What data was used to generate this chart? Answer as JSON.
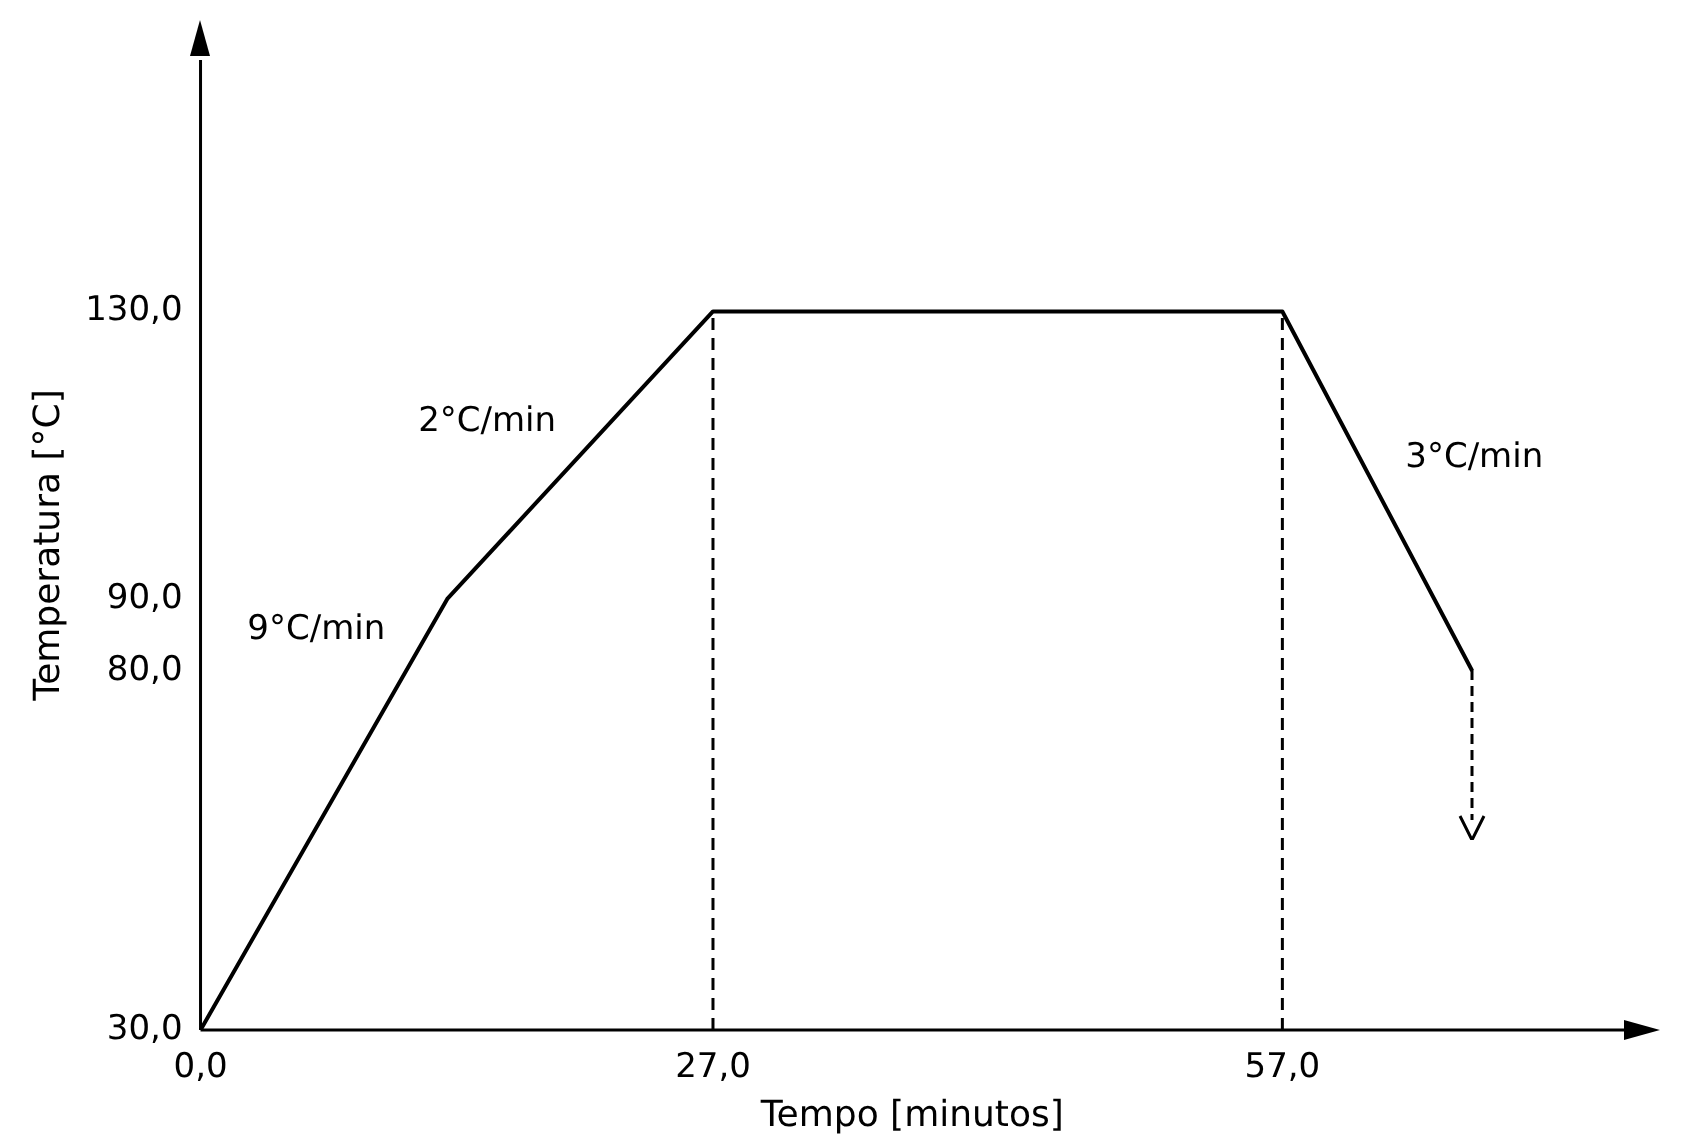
{
  "chart_data": {
    "type": "line",
    "xlabel": "Tempo [minutos]",
    "ylabel": "Temperatura [°C]",
    "x": [
      0,
      13,
      27,
      57,
      67
    ],
    "series": [
      {
        "color": "#000000",
        "values": [
          30,
          90,
          130,
          130,
          80
        ]
      }
    ],
    "xlim": [
      0,
      75
    ],
    "ylim": [
      30,
      165
    ],
    "xticks": [
      {
        "value": 0,
        "label": "0,0"
      },
      {
        "value": 27,
        "label": "27,0"
      },
      {
        "value": 57,
        "label": "57,0"
      }
    ],
    "yticks": [
      {
        "value": 30,
        "label": "30,0"
      },
      {
        "value": 80,
        "label": "80,0"
      },
      {
        "value": 90,
        "label": "90,0"
      },
      {
        "value": 130,
        "label": "130,0"
      }
    ],
    "ref_lines": [
      {
        "axis": "x",
        "value": 27,
        "color": "#000000",
        "line_style": "dashed"
      },
      {
        "axis": "x",
        "value": 57,
        "color": "#000000",
        "line_style": "dashed"
      }
    ],
    "annotations": [
      {
        "text": "9°C/min",
        "x": 11,
        "y": 81
      },
      {
        "text": "2°C/min",
        "x": 20,
        "y": 110
      },
      {
        "text": "3°C/min",
        "x": 62,
        "y": 105
      }
    ],
    "grid": false,
    "legend": false,
    "marker": "none",
    "line_style": "solid"
  }
}
